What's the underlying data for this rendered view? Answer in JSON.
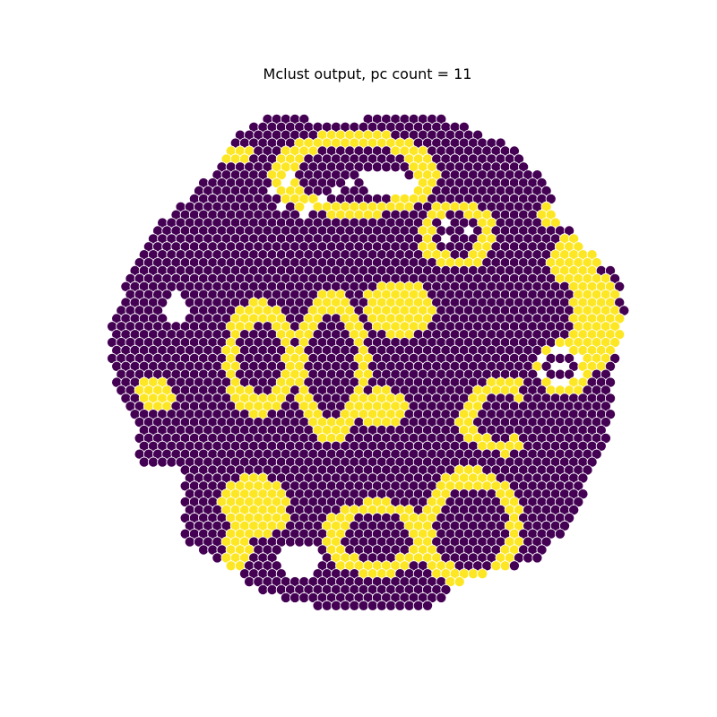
{
  "chart_data": {
    "type": "scatter",
    "title": "Mclust output, pc count = 11",
    "xlabel": "",
    "ylabel": "",
    "axes_visible": false,
    "grid": false,
    "legend": "none",
    "marker": "filled-circle",
    "marker_edge_color": "#ffffff",
    "layout": "hexagonal-lattice",
    "clusters": [
      {
        "id": 1,
        "color": "#440154"
      },
      {
        "id": 2,
        "color": "#fde725"
      }
    ],
    "lattice": {
      "rows": 63,
      "spot_count_estimate": 2400,
      "outline": "roughly circular tissue section with ragged edges",
      "empty_gaps_present": true
    },
    "regions_of_cluster_2": [
      "upper arc bands near top center",
      "upper-right loop around a ring structure",
      "right-side crescent patches",
      "central oval rings on the left of center",
      "central irregular blob",
      "middle-right C-shaped band",
      "lower-left hexagonal patch",
      "lower-center winding band",
      "lower-right hexagonal ring",
      "small isolated patches on left and right edges"
    ]
  }
}
